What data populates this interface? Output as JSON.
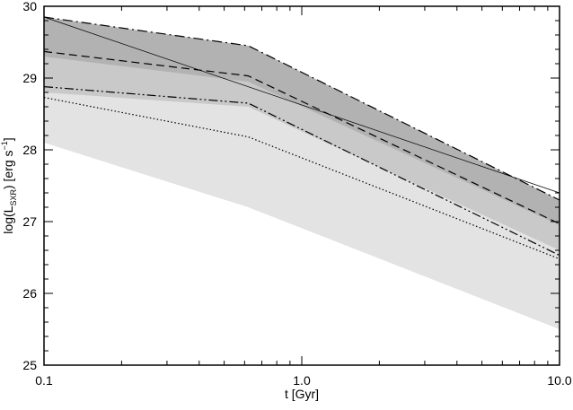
{
  "chart_data": {
    "type": "line",
    "title": "",
    "xlabel": "t [Gyr]",
    "ylabel_main": "log(L",
    "ylabel_sub": "SXR",
    "ylabel_units": ") [erg s",
    "ylabel_sup": "−1",
    "ylabel_close": "]",
    "x_scale": "log",
    "xlim": [
      0.1,
      10.0
    ],
    "ylim": [
      25,
      30
    ],
    "x_tick_labels": [
      {
        "value": 0.1,
        "label": "0.1"
      },
      {
        "value": 1.0,
        "label": "1.0"
      },
      {
        "value": 10.0,
        "label": "10.0"
      }
    ],
    "y_tick_labels": [
      {
        "value": 25,
        "label": "25"
      },
      {
        "value": 26,
        "label": "26"
      },
      {
        "value": 27,
        "label": "27"
      },
      {
        "value": 28,
        "label": "28"
      },
      {
        "value": 29,
        "label": "29"
      },
      {
        "value": 30,
        "label": "30"
      }
    ],
    "bands": [
      {
        "fill": "#e3e3e3",
        "x": [
          0.1,
          0.62,
          10.0
        ],
        "upper": [
          29.1,
          28.8,
          26.8
        ],
        "lower": [
          28.1,
          27.2,
          25.5
        ]
      },
      {
        "fill": "#c9c9c9",
        "x": [
          0.1,
          0.62,
          10.0
        ],
        "upper": [
          29.6,
          29.2,
          27.15
        ],
        "lower": [
          28.8,
          28.6,
          26.6
        ]
      },
      {
        "fill": "#b2b2b2",
        "x": [
          0.1,
          0.62,
          10.0
        ],
        "upper": [
          29.85,
          29.45,
          27.3
        ],
        "lower": [
          29.3,
          28.95,
          26.95
        ]
      }
    ],
    "series": [
      {
        "style": "dash-dot",
        "x": [
          0.1,
          0.62,
          10.0
        ],
        "y": [
          29.85,
          29.45,
          27.3
        ]
      },
      {
        "style": "dashed",
        "x": [
          0.1,
          0.62,
          10.0
        ],
        "y": [
          29.37,
          29.03,
          26.97
        ]
      },
      {
        "style": "dash-dot-dot",
        "x": [
          0.1,
          0.62,
          10.0
        ],
        "y": [
          28.88,
          28.65,
          26.53
        ]
      },
      {
        "style": "dotted",
        "x": [
          0.1,
          0.62,
          10.0
        ],
        "y": [
          28.73,
          28.18,
          26.48
        ]
      },
      {
        "style": "thin-solid",
        "x": [
          0.1,
          10.0
        ],
        "y": [
          29.85,
          27.4
        ]
      }
    ]
  }
}
